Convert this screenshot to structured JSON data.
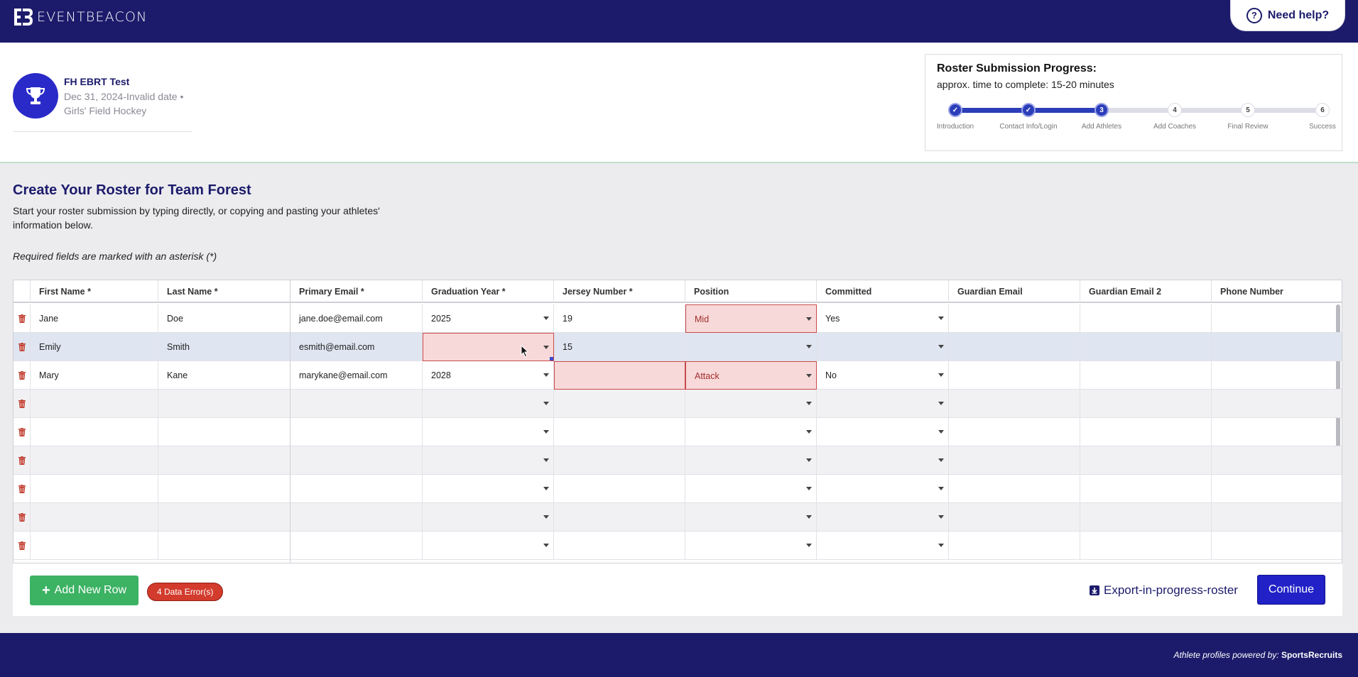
{
  "brand": {
    "name": "EVENTBEACON"
  },
  "help": {
    "label": "Need help?"
  },
  "event": {
    "title": "FH EBRT Test",
    "date": "Dec 31, 2024-Invalid date •",
    "sport": "Girls' Field Hockey"
  },
  "progress": {
    "title": "Roster Submission Progress:",
    "subtitle": "approx. time to complete: 15-20 minutes",
    "completed_fraction": 0.4,
    "steps": [
      {
        "marker": "✓",
        "label": "Introduction",
        "state": "done"
      },
      {
        "marker": "✓",
        "label": "Contact Info/Login",
        "state": "done"
      },
      {
        "marker": "3",
        "label": "Add Athletes",
        "state": "current"
      },
      {
        "marker": "4",
        "label": "Add Coaches",
        "state": "todo"
      },
      {
        "marker": "5",
        "label": "Final Review",
        "state": "todo"
      },
      {
        "marker": "6",
        "label": "Success",
        "state": "todo"
      }
    ]
  },
  "main": {
    "title": "Create Your Roster for Team Forest",
    "description": "Start your roster submission by typing directly, or copying and pasting your athletes' information below.",
    "required_note": "Required fields are marked with an asterisk (*)"
  },
  "grid": {
    "columns": [
      "First Name *",
      "Last Name *",
      "Primary Email *",
      "Graduation Year *",
      "Jersey Number *",
      "Position",
      "Committed",
      "Guardian Email",
      "Guardian Email 2",
      "Phone Number"
    ],
    "rows": [
      {
        "cells": [
          "Jane",
          "Doe",
          "jane.doe@email.com",
          "2025",
          "19",
          "Mid",
          "Yes",
          "",
          "",
          ""
        ],
        "errors": [
          5
        ]
      },
      {
        "cells": [
          "Emily",
          "Smith",
          "esmith@email.com",
          "",
          "15",
          "",
          "",
          "",
          "",
          ""
        ],
        "errors": [
          3
        ],
        "selected": true
      },
      {
        "cells": [
          "Mary",
          "Kane",
          "marykane@email.com",
          "2028",
          "",
          "Attack",
          "No",
          "",
          "",
          ""
        ],
        "errors": [
          4,
          5
        ]
      },
      {
        "cells": [
          "",
          "",
          "",
          "",
          "",
          "",
          "",
          "",
          "",
          ""
        ],
        "errors": []
      },
      {
        "cells": [
          "",
          "",
          "",
          "",
          "",
          "",
          "",
          "",
          "",
          ""
        ],
        "errors": []
      },
      {
        "cells": [
          "",
          "",
          "",
          "",
          "",
          "",
          "",
          "",
          "",
          ""
        ],
        "errors": []
      },
      {
        "cells": [
          "",
          "",
          "",
          "",
          "",
          "",
          "",
          "",
          "",
          ""
        ],
        "errors": []
      },
      {
        "cells": [
          "",
          "",
          "",
          "",
          "",
          "",
          "",
          "",
          "",
          ""
        ],
        "errors": []
      },
      {
        "cells": [
          "",
          "",
          "",
          "",
          "",
          "",
          "",
          "",
          "",
          ""
        ],
        "errors": []
      }
    ],
    "dropdown_columns": [
      3,
      5,
      6
    ]
  },
  "actions": {
    "add_row_label": "Add New Row",
    "error_badge": "4 Data Error(s)",
    "export_label": "Export-in-progress-roster",
    "continue_label": "Continue"
  },
  "footer": {
    "powered_by": "Athlete profiles powered by:",
    "partner": "SportsRecruits"
  },
  "colors": {
    "navy": "#1c1b6b",
    "primary": "#2121c7",
    "success": "#3cb263",
    "error": "#d33b2c"
  }
}
